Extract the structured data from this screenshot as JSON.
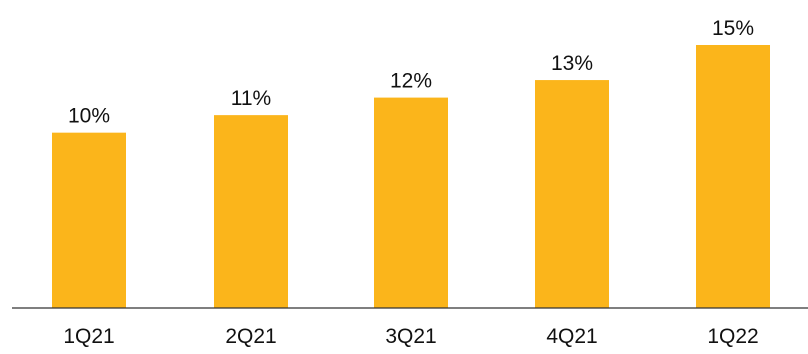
{
  "chart_data": {
    "type": "bar",
    "categories": [
      "1Q21",
      "2Q21",
      "3Q21",
      "4Q21",
      "1Q22"
    ],
    "values": [
      10,
      11,
      12,
      13,
      15
    ],
    "data_labels": [
      "10%",
      "11%",
      "12%",
      "13%",
      "15%"
    ],
    "bar_color": "#FBB51B",
    "axis_color": "#333333",
    "ylim": [
      0,
      15
    ],
    "grid": false,
    "legend": "none"
  }
}
